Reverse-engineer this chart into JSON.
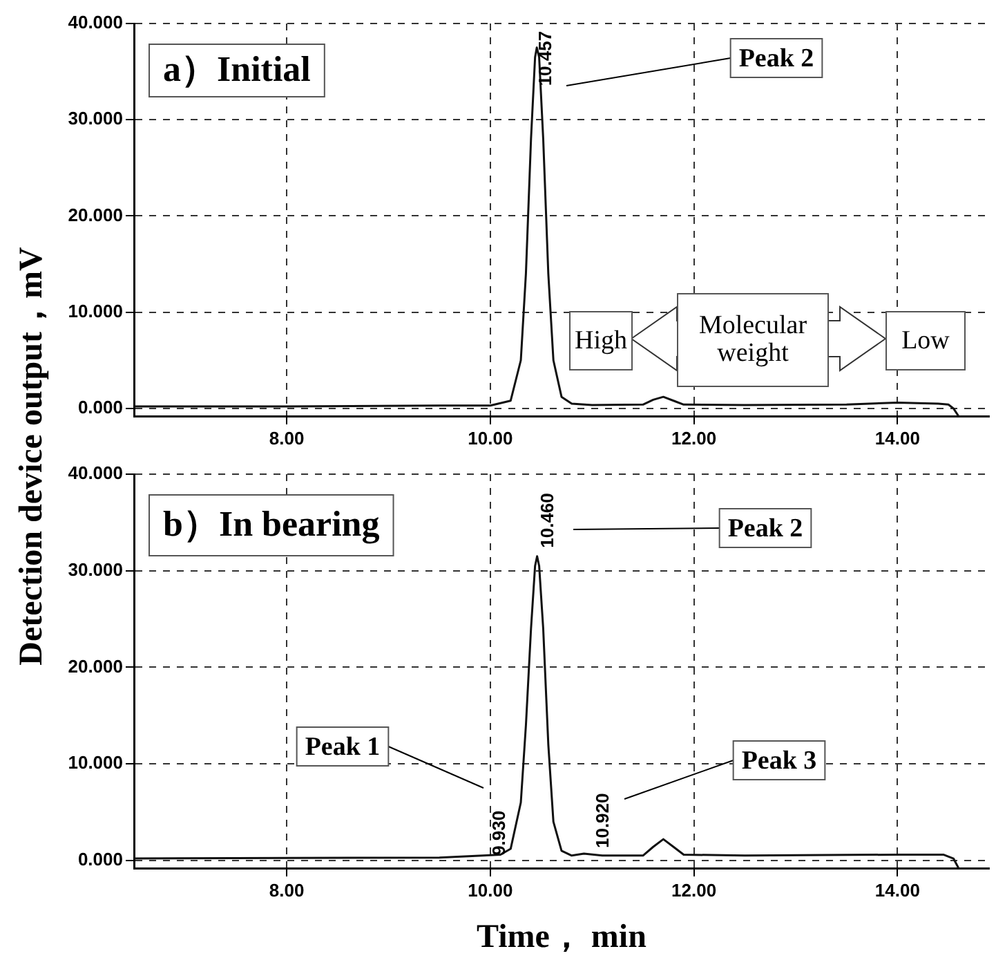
{
  "chart_data": [
    {
      "type": "line",
      "title": "a）Initial",
      "ylabel": "Detection device output，mV",
      "color": "#111111",
      "x": [
        6.5,
        8,
        9.5,
        10.0,
        10.2,
        10.3,
        10.35,
        10.4,
        10.44,
        10.457,
        10.48,
        10.52,
        10.57,
        10.62,
        10.7,
        10.8,
        11.0,
        11.5,
        11.6,
        11.7,
        11.8,
        11.9,
        12.5,
        13.5,
        14.0,
        14.4,
        14.5,
        14.55,
        14.6
      ],
      "values": [
        0.2,
        0.2,
        0.3,
        0.3,
        0.8,
        5,
        14,
        28,
        36.5,
        37.5,
        36.5,
        28,
        14,
        5,
        1.2,
        0.5,
        0.35,
        0.4,
        0.9,
        1.2,
        0.8,
        0.4,
        0.35,
        0.4,
        0.6,
        0.5,
        0.4,
        0,
        -0.8
      ],
      "xlim": [
        6.5,
        14.9
      ],
      "xticks": [
        {
          "value": 8,
          "label": "8.00"
        },
        {
          "value": 10,
          "label": "10.00"
        },
        {
          "value": 12,
          "label": "12.00"
        },
        {
          "value": 14,
          "label": "14.00"
        }
      ],
      "ylim": [
        -0.8,
        40
      ],
      "yticks": [
        {
          "value": 0,
          "label": "0.000"
        },
        {
          "value": 10,
          "label": "10.000"
        },
        {
          "value": 20,
          "label": "20.000"
        },
        {
          "value": 30,
          "label": "30.000"
        },
        {
          "value": 40,
          "label": "40.000"
        }
      ],
      "grid": true,
      "annotations": [
        {
          "text": "10.457",
          "x": 10.457,
          "y": 37.5
        },
        "Peak 2",
        "High",
        "Molecular weight",
        "Low"
      ]
    },
    {
      "type": "line",
      "title": "b）In bearing",
      "xlabel": "Time， min",
      "color": "#111111",
      "x": [
        6.5,
        9.5,
        9.93,
        10.1,
        10.2,
        10.3,
        10.35,
        10.4,
        10.44,
        10.46,
        10.48,
        10.52,
        10.57,
        10.62,
        10.7,
        10.8,
        10.92,
        11.1,
        11.5,
        11.6,
        11.7,
        11.8,
        11.9,
        12.5,
        14.0,
        14.45,
        14.55,
        14.6
      ],
      "values": [
        0.2,
        0.3,
        0.5,
        0.6,
        1.2,
        6,
        14,
        24,
        30.5,
        31.5,
        30.5,
        24,
        12,
        4,
        1,
        0.5,
        0.7,
        0.5,
        0.5,
        1.4,
        2.2,
        1.4,
        0.6,
        0.5,
        0.6,
        0.6,
        0.2,
        -0.8
      ],
      "xlim": [
        6.5,
        14.9
      ],
      "xticks": [
        {
          "value": 8,
          "label": "8.00"
        },
        {
          "value": 10,
          "label": "10.00"
        },
        {
          "value": 12,
          "label": "12.00"
        },
        {
          "value": 14,
          "label": "14.00"
        }
      ],
      "ylim": [
        -0.8,
        40
      ],
      "yticks": [
        {
          "value": 0,
          "label": "0.000"
        },
        {
          "value": 10,
          "label": "10.000"
        },
        {
          "value": 20,
          "label": "20.000"
        },
        {
          "value": 30,
          "label": "30.000"
        },
        {
          "value": 40,
          "label": "40.000"
        }
      ],
      "grid": true,
      "annotations": [
        {
          "text": "10.460",
          "x": 10.46,
          "y": 31.5
        },
        "Peak 2",
        {
          "text": "9.930",
          "x": 9.93,
          "y": 0.5
        },
        "Peak 1",
        {
          "text": "10.920",
          "x": 10.92,
          "y": 0.7
        },
        "Peak 3"
      ]
    }
  ]
}
